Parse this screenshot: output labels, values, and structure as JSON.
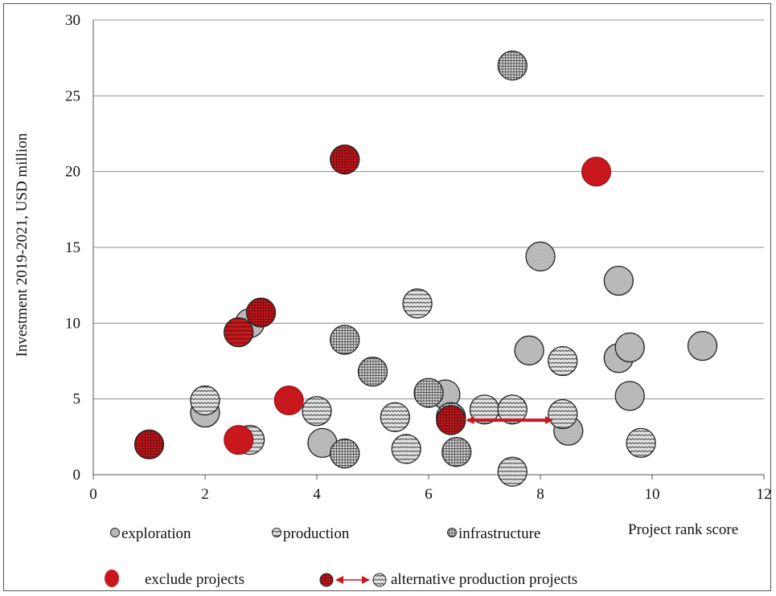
{
  "colors": {
    "exclude": "#c8171d",
    "exploration": "#c4c4c4",
    "production": "#d8d8d8",
    "infrastructure": "#cfcfcf",
    "grid": "#8c8c8c",
    "arrow": "#c8171d"
  },
  "chart_data": {
    "type": "scatter",
    "xlabel": "Project rank score",
    "ylabel": "Investment 2019-2021, USD million",
    "xlim": [
      0,
      12
    ],
    "ylim": [
      0,
      30
    ],
    "x_ticks": [
      0,
      2,
      4,
      6,
      8,
      10,
      12
    ],
    "y_ticks": [
      0,
      5,
      10,
      15,
      20,
      25,
      30
    ],
    "grid": "horizontal",
    "legend_position": "bottom",
    "series": [
      {
        "name": "exploration",
        "pattern": "dots",
        "points": [
          {
            "x": 2.0,
            "y": 4.1
          },
          {
            "x": 2.8,
            "y": 10.0
          },
          {
            "x": 4.1,
            "y": 2.1
          },
          {
            "x": 6.3,
            "y": 5.3
          },
          {
            "x": 7.8,
            "y": 8.2
          },
          {
            "x": 8.0,
            "y": 14.4
          },
          {
            "x": 8.5,
            "y": 2.9
          },
          {
            "x": 9.4,
            "y": 7.7
          },
          {
            "x": 9.4,
            "y": 12.8
          },
          {
            "x": 9.6,
            "y": 8.4
          },
          {
            "x": 9.6,
            "y": 5.2
          },
          {
            "x": 10.9,
            "y": 8.5
          }
        ]
      },
      {
        "name": "production",
        "pattern": "waves",
        "points": [
          {
            "x": 2.0,
            "y": 4.9
          },
          {
            "x": 2.8,
            "y": 2.3
          },
          {
            "x": 4.0,
            "y": 4.2
          },
          {
            "x": 5.4,
            "y": 3.8
          },
          {
            "x": 5.6,
            "y": 1.7
          },
          {
            "x": 5.8,
            "y": 11.3
          },
          {
            "x": 7.0,
            "y": 4.3
          },
          {
            "x": 7.5,
            "y": 4.3
          },
          {
            "x": 7.5,
            "y": 0.2
          },
          {
            "x": 8.4,
            "y": 7.5
          },
          {
            "x": 8.4,
            "y": 4.0
          },
          {
            "x": 9.8,
            "y": 2.1
          }
        ]
      },
      {
        "name": "infrastructure",
        "pattern": "grid",
        "points": [
          {
            "x": 4.5,
            "y": 8.9
          },
          {
            "x": 4.5,
            "y": 1.4
          },
          {
            "x": 5.0,
            "y": 6.8
          },
          {
            "x": 6.0,
            "y": 5.4
          },
          {
            "x": 6.4,
            "y": 3.8
          },
          {
            "x": 6.5,
            "y": 1.5
          },
          {
            "x": 7.5,
            "y": 27.0
          }
        ]
      },
      {
        "name": "exclude projects",
        "pattern": "solid",
        "points": [
          {
            "x": 1.0,
            "y": 2.0,
            "pattern": "grid"
          },
          {
            "x": 2.6,
            "y": 9.4,
            "pattern": "waves"
          },
          {
            "x": 2.6,
            "y": 2.3,
            "pattern": "solid"
          },
          {
            "x": 3.0,
            "y": 10.7,
            "pattern": "grid"
          },
          {
            "x": 3.5,
            "y": 4.9,
            "pattern": "solid"
          },
          {
            "x": 4.5,
            "y": 20.8,
            "pattern": "grid"
          },
          {
            "x": 6.4,
            "y": 3.6,
            "pattern": "grid"
          },
          {
            "x": 9.0,
            "y": 20.0,
            "pattern": "solid"
          }
        ]
      }
    ],
    "annotations": [
      {
        "type": "double-arrow",
        "from": {
          "x": 6.7,
          "y": 3.6
        },
        "to": {
          "x": 8.2,
          "y": 3.6
        }
      }
    ]
  },
  "legend": {
    "exploration": "exploration",
    "production": "production",
    "infrastructure": "infrastructure",
    "exclude": "exclude projects",
    "alternative": "alternative production projects"
  }
}
